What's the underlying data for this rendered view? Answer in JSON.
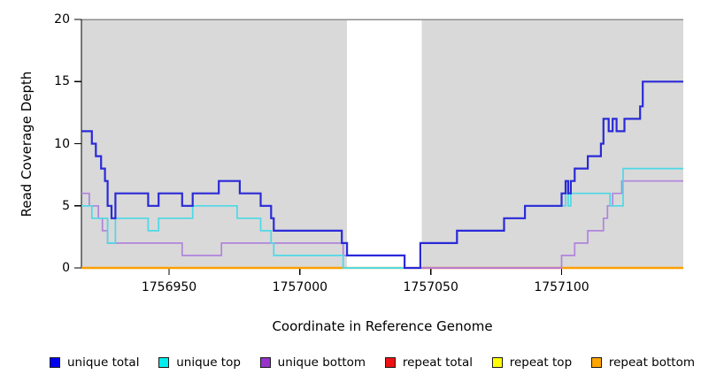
{
  "figure": {
    "x_axis_label": "Coordinate in Reference Genome",
    "y_axis_label": "Read Coverage Depth"
  },
  "legend": {
    "items": [
      {
        "label": "unique total",
        "color": "#0000ee"
      },
      {
        "label": "unique top",
        "color": "#00eeee"
      },
      {
        "label": "unique bottom",
        "color": "#9932cc"
      },
      {
        "label": "repeat total",
        "color": "#ee1111"
      },
      {
        "label": "repeat top",
        "color": "#ffff00"
      },
      {
        "label": "repeat bottom",
        "color": "#ffa500"
      }
    ]
  },
  "chart_data": {
    "type": "line",
    "subtype": "step-coverage-plot",
    "x_domain": [
      1756916.5,
      1757146.5
    ],
    "y_domain": [
      0,
      20
    ],
    "grid": false,
    "legend_position": "bottom",
    "x_ticks": [
      {
        "value": 1756950,
        "label": "1756950"
      },
      {
        "value": 1757000,
        "label": "1757000"
      },
      {
        "value": 1757050,
        "label": "1757050"
      },
      {
        "value": 1757100,
        "label": "1757100"
      }
    ],
    "y_ticks": [
      {
        "value": 0,
        "label": "0"
      },
      {
        "value": 5,
        "label": "5"
      },
      {
        "value": 10,
        "label": "10"
      },
      {
        "value": 15,
        "label": "15"
      },
      {
        "value": 20,
        "label": "20"
      }
    ],
    "colors": {
      "shaded_band": "#d9d9d9",
      "band_top_border": "#8d8d8d",
      "axis": "#000000"
    },
    "shaded_bands": [
      [
        1756916.5,
        1757018.0
      ],
      [
        1757046.5,
        1757146.5
      ]
    ],
    "unshaded_gap": [
      1757018.0,
      1757046.5
    ],
    "baseline_segments": [
      {
        "name": "repeat-bottom-left",
        "from": 1756916.5,
        "to": 1757016.5,
        "color": "#ff9e00"
      },
      {
        "name": "overlap-green",
        "from": 1757016.5,
        "to": 1757040.0,
        "color": "#9cd6a4"
      },
      {
        "name": "overlap-crimson",
        "from": 1757046.5,
        "to": 1757100.0,
        "color": "#dd4e66"
      },
      {
        "name": "repeat-bottom-right",
        "from": 1757100.0,
        "to": 1757146.5,
        "color": "#ff9e00"
      }
    ],
    "series": [
      {
        "name": "repeat total",
        "color": "#ee1111",
        "width": 2,
        "steps": [
          [
            1756916.5,
            0
          ]
        ]
      },
      {
        "name": "repeat top",
        "color": "#ffff00",
        "width": 2,
        "steps": [
          [
            1756916.5,
            0
          ]
        ]
      },
      {
        "name": "repeat bottom",
        "color": "#ff9e00",
        "width": 2.2,
        "steps": [
          [
            1756916.5,
            0
          ]
        ]
      },
      {
        "name": "unique bottom",
        "color": "#b084dc",
        "width": 1.7,
        "steps": [
          [
            1756916.5,
            6
          ],
          [
            1756919.5,
            5
          ],
          [
            1756923,
            4
          ],
          [
            1756924.5,
            3
          ],
          [
            1756926.5,
            2
          ],
          [
            1756955,
            1
          ],
          [
            1756970,
            2
          ],
          [
            1757016.5,
            1
          ],
          [
            1757040,
            0
          ],
          [
            1757100,
            1
          ],
          [
            1757105,
            2
          ],
          [
            1757110,
            3
          ],
          [
            1757116,
            4
          ],
          [
            1757117.5,
            5
          ],
          [
            1757119.5,
            6
          ],
          [
            1757123,
            7
          ]
        ]
      },
      {
        "name": "unique top",
        "color": "#4dd8e6",
        "width": 1.7,
        "steps": [
          [
            1756916.5,
            5
          ],
          [
            1756920.5,
            4
          ],
          [
            1756926.5,
            2
          ],
          [
            1756929.5,
            4
          ],
          [
            1756942,
            3
          ],
          [
            1756946,
            4
          ],
          [
            1756959,
            5
          ],
          [
            1756976,
            4
          ],
          [
            1756985,
            3
          ],
          [
            1756989,
            2
          ],
          [
            1756990,
            1
          ],
          [
            1757016.5,
            0
          ],
          [
            1757046,
            2
          ],
          [
            1757060,
            3
          ],
          [
            1757078,
            4
          ],
          [
            1757086,
            5
          ],
          [
            1757101.5,
            6
          ],
          [
            1757102.5,
            5
          ],
          [
            1757103.5,
            6
          ],
          [
            1757118.5,
            5
          ],
          [
            1757123.5,
            8
          ]
        ]
      },
      {
        "name": "unique total",
        "color": "#2a2ad8",
        "width": 2.2,
        "steps": [
          [
            1756916.5,
            11
          ],
          [
            1756920.5,
            10
          ],
          [
            1756922,
            9
          ],
          [
            1756924,
            8
          ],
          [
            1756925.5,
            7
          ],
          [
            1756926.5,
            5
          ],
          [
            1756928,
            4
          ],
          [
            1756929.5,
            6
          ],
          [
            1756942,
            5
          ],
          [
            1756946,
            6
          ],
          [
            1756955,
            5
          ],
          [
            1756959,
            6
          ],
          [
            1756969,
            7
          ],
          [
            1756977,
            6
          ],
          [
            1756985,
            5
          ],
          [
            1756989,
            4
          ],
          [
            1756990,
            3
          ],
          [
            1757016,
            2
          ],
          [
            1757018,
            1
          ],
          [
            1757040,
            0
          ],
          [
            1757046,
            2
          ],
          [
            1757060,
            3
          ],
          [
            1757078,
            4
          ],
          [
            1757086,
            5
          ],
          [
            1757100,
            6
          ],
          [
            1757101.5,
            7
          ],
          [
            1757102.5,
            6
          ],
          [
            1757103.5,
            7
          ],
          [
            1757105,
            8
          ],
          [
            1757110,
            9
          ],
          [
            1757115,
            10
          ],
          [
            1757116,
            12
          ],
          [
            1757118,
            11
          ],
          [
            1757119.5,
            12
          ],
          [
            1757121,
            11
          ],
          [
            1757124,
            12
          ],
          [
            1757130,
            13
          ],
          [
            1757131,
            15
          ]
        ]
      }
    ]
  }
}
